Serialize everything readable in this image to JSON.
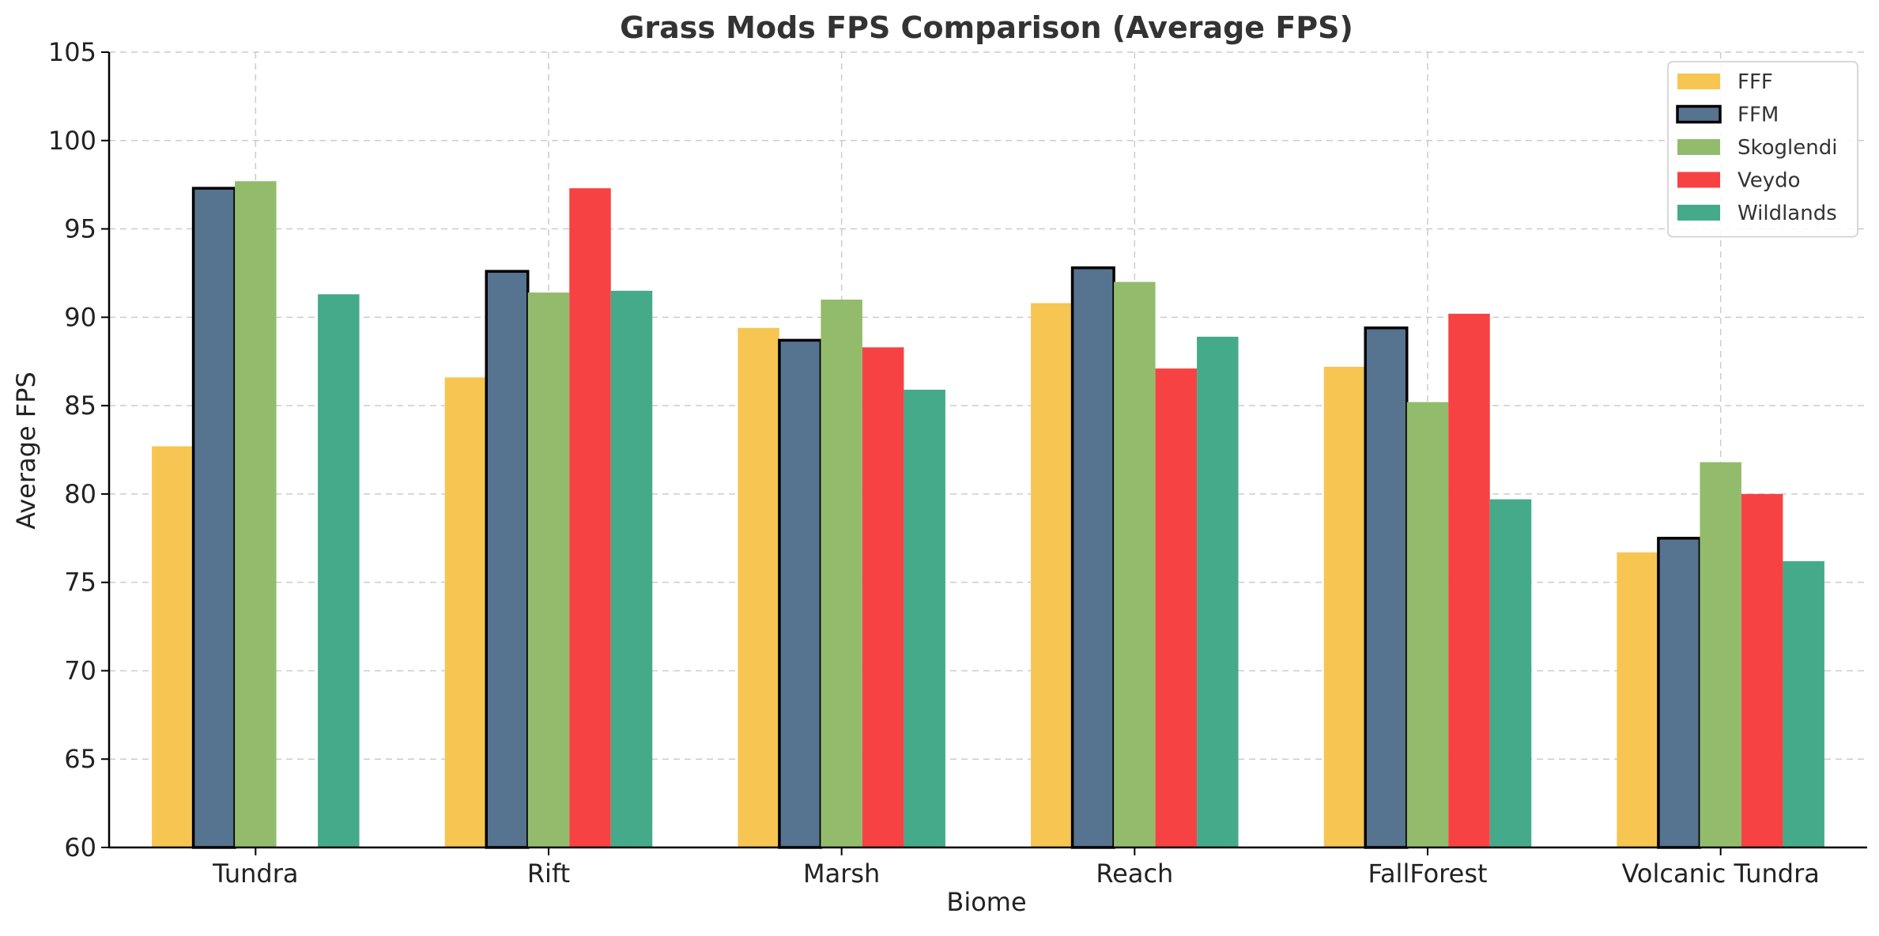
{
  "chart_data": {
    "type": "bar",
    "title": "Grass Mods FPS Comparison (Average FPS)",
    "xlabel": "Biome",
    "ylabel": "Average FPS",
    "ylim": [
      60,
      105
    ],
    "yticks": [
      60,
      65,
      70,
      75,
      80,
      85,
      90,
      95,
      100,
      105
    ],
    "grid": true,
    "legend_position": "top-right",
    "categories": [
      "Tundra",
      "Rift",
      "Marsh",
      "Reach",
      "FallForest",
      "Volcanic Tundra"
    ],
    "series": [
      {
        "name": "FFF",
        "color": "#F7C552",
        "outlined": false,
        "values": [
          82.7,
          86.6,
          89.4,
          90.8,
          87.2,
          76.7
        ]
      },
      {
        "name": "FFM",
        "color": "#56738F",
        "outlined": true,
        "values": [
          97.3,
          92.6,
          88.7,
          92.8,
          89.4,
          77.5
        ]
      },
      {
        "name": "Skoglendi",
        "color": "#92BC6C",
        "outlined": false,
        "values": [
          97.7,
          91.4,
          91.0,
          92.0,
          85.2,
          81.8
        ]
      },
      {
        "name": "Veydo",
        "color": "#F74244",
        "outlined": false,
        "values": [
          null,
          97.3,
          88.3,
          87.1,
          90.2,
          80.0
        ]
      },
      {
        "name": "Wildlands",
        "color": "#44AA8A",
        "outlined": false,
        "values": [
          91.3,
          91.5,
          85.9,
          88.9,
          79.7,
          76.2
        ]
      }
    ]
  }
}
